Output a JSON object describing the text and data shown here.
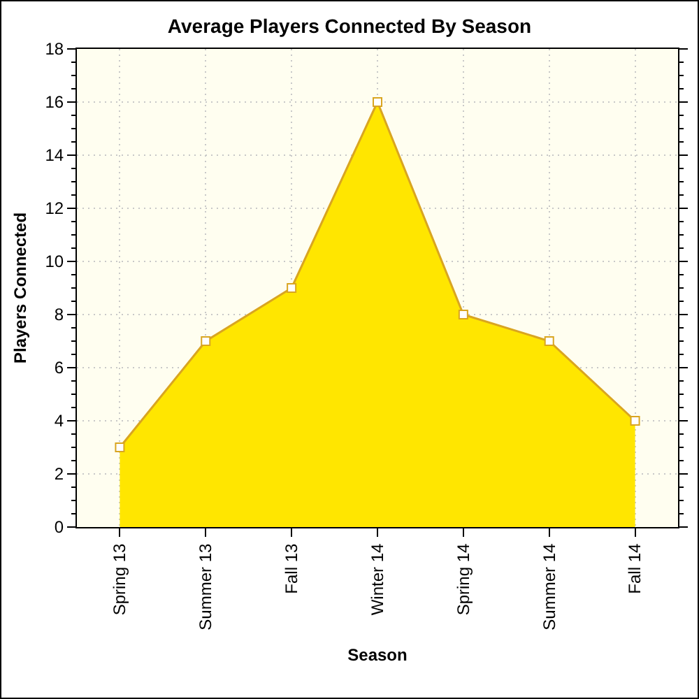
{
  "chart_data": {
    "type": "area",
    "title": "Average Players Connected By Season",
    "xlabel": "Season",
    "ylabel": "Players Connected",
    "categories": [
      "Spring 13",
      "Summer 13",
      "Fall 13",
      "Winter 14",
      "Spring 14",
      "Summer 14",
      "Fall 14"
    ],
    "series": [
      {
        "color": "#ffe600",
        "values": [
          3,
          7,
          9,
          16,
          8,
          7,
          4
        ]
      }
    ],
    "ylim": [
      0,
      18
    ],
    "yticks": [
      0,
      2,
      4,
      6,
      8,
      10,
      12,
      14,
      16,
      18
    ],
    "grid": true,
    "marker": "square",
    "line_style": "solid"
  }
}
